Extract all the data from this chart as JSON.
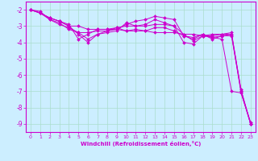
{
  "background_color": "#cceeff",
  "grid_color": "#aaddcc",
  "line_color": "#cc00cc",
  "marker": "D",
  "marker_size": 2,
  "xlabel": "Windchill (Refroidissement éolien,°C)",
  "xlim": [
    -0.5,
    23.5
  ],
  "ylim": [
    -9.5,
    -1.5
  ],
  "yticks": [
    -9,
    -8,
    -7,
    -6,
    -5,
    -4,
    -3,
    -2
  ],
  "xticks": [
    0,
    1,
    2,
    3,
    4,
    5,
    6,
    7,
    8,
    9,
    10,
    11,
    12,
    13,
    14,
    15,
    16,
    17,
    18,
    19,
    20,
    21,
    22,
    23
  ],
  "series": [
    [
      -2.0,
      -2.2,
      -2.5,
      -2.7,
      -3.0,
      -3.0,
      -3.2,
      -3.2,
      -3.2,
      -3.2,
      -3.3,
      -3.3,
      -3.3,
      -3.4,
      -3.4,
      -3.4,
      -3.5,
      -3.5,
      -3.6,
      -3.7,
      -3.8,
      -7.0,
      -7.1,
      -8.9
    ],
    [
      -2.0,
      -2.2,
      -2.6,
      -2.8,
      -3.2,
      -3.4,
      -3.4,
      -3.3,
      -3.3,
      -3.1,
      -3.3,
      -3.2,
      -3.3,
      -3.1,
      -3.1,
      -3.3,
      -3.6,
      -3.8,
      -3.5,
      -3.7,
      -3.6,
      -3.5,
      -7.1,
      -9.0
    ],
    [
      -2.0,
      -2.2,
      -2.5,
      -2.7,
      -2.9,
      -3.8,
      -3.5,
      -3.2,
      -3.2,
      -3.1,
      -3.0,
      -3.0,
      -3.0,
      -2.9,
      -2.9,
      -3.0,
      -3.5,
      -3.9,
      -3.6,
      -3.6,
      -3.5,
      -3.4,
      -7.0,
      -9.0
    ],
    [
      -2.0,
      -2.1,
      -2.6,
      -2.9,
      -3.1,
      -3.4,
      -3.8,
      -3.5,
      -3.4,
      -3.3,
      -2.8,
      -3.0,
      -2.9,
      -2.6,
      -2.8,
      -3.0,
      -4.0,
      -4.1,
      -3.6,
      -3.5,
      -3.5,
      -3.5,
      -6.9,
      -9.0
    ],
    [
      -2.0,
      -2.2,
      -2.5,
      -2.7,
      -3.0,
      -3.5,
      -4.0,
      -3.5,
      -3.3,
      -3.2,
      -2.9,
      -2.7,
      -2.6,
      -2.4,
      -2.5,
      -2.6,
      -3.6,
      -3.7,
      -3.5,
      -3.8,
      -3.6,
      -3.6,
      -7.0,
      -9.0
    ]
  ]
}
